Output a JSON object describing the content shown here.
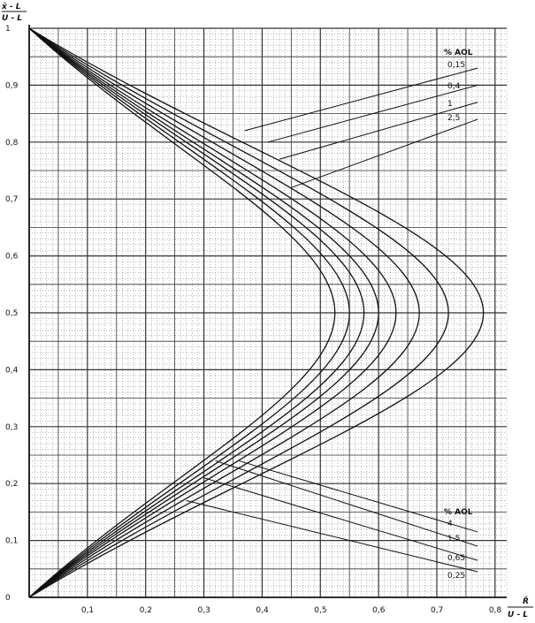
{
  "chart_data": {
    "type": "line",
    "title": "",
    "xlabel": {
      "numerator": "R̄",
      "denominator": "U - L"
    },
    "ylabel": {
      "numerator": "x̄ - L",
      "denominator": "U - L"
    },
    "xlim": [
      0,
      0.82
    ],
    "ylim": [
      0,
      1
    ],
    "x_ticks": [
      "0,1",
      "0,2",
      "0,3",
      "0,4",
      "0,5",
      "0,6",
      "0,7",
      "0,8"
    ],
    "y_ticks": [
      "0",
      "0,1",
      "0,2",
      "0,3",
      "0,4",
      "0,5",
      "0,6",
      "0,7",
      "0,8",
      "0,9",
      "1"
    ],
    "grid": true,
    "legend_top": {
      "title": "% AOL",
      "labels": [
        "0,15",
        "0,4",
        "1",
        "2,5"
      ]
    },
    "legend_bottom": {
      "title": "% AOL",
      "labels": [
        "4",
        "1,5",
        "0,65",
        "0,25"
      ]
    },
    "series": [
      {
        "name": "0,25",
        "rmax": 0.78
      },
      {
        "name": "0,65",
        "rmax": 0.72
      },
      {
        "name": "1,5",
        "rmax": 0.67
      },
      {
        "name": "4",
        "rmax": 0.63
      },
      {
        "name": "2,5",
        "rmax": 0.6
      },
      {
        "name": "1",
        "rmax": 0.575
      },
      {
        "name": "0,4",
        "rmax": 0.55
      },
      {
        "name": "0,15",
        "rmax": 0.525
      }
    ],
    "colors": {
      "line": "#111111",
      "grid": "#333333",
      "background": "#ffffff"
    }
  }
}
